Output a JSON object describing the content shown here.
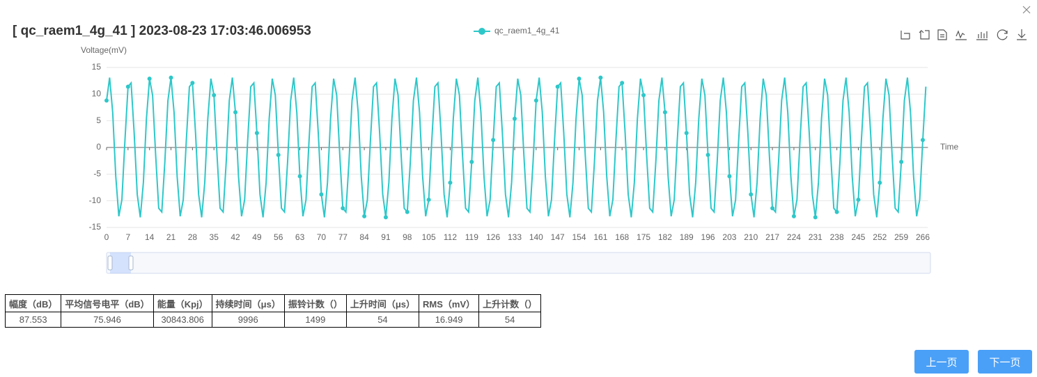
{
  "header": {
    "title": "[ qc_raem1_4g_41 ] 2023-08-23 17:03:46.006953"
  },
  "chart_data": {
    "type": "line",
    "y_label": "Voltage(mV)",
    "x_label": "Time",
    "ylim": [
      -15,
      15
    ],
    "yticks": [
      -15,
      -10,
      -5,
      0,
      5,
      10,
      15
    ],
    "grid": true,
    "categories": [
      0,
      null,
      null,
      null,
      null,
      null,
      null,
      7,
      null,
      null,
      null,
      null,
      null,
      null,
      14,
      null,
      null,
      null,
      null,
      null,
      null,
      21,
      null,
      null,
      null,
      null,
      null,
      null,
      28,
      null,
      null,
      null,
      null,
      null,
      null,
      35,
      null,
      null,
      null,
      null,
      null,
      null,
      42,
      null,
      null,
      null,
      null,
      null,
      null,
      49,
      null,
      null,
      null,
      null,
      null,
      null,
      56,
      null,
      null,
      null,
      null,
      null,
      null,
      63,
      null,
      null,
      null,
      null,
      null,
      null,
      70,
      null,
      null,
      null,
      null,
      null,
      null,
      77,
      null,
      null,
      null,
      null,
      null,
      null,
      84,
      null,
      null,
      null,
      null,
      null,
      null,
      91,
      null,
      null,
      null,
      null,
      null,
      null,
      98,
      null,
      null,
      null,
      null,
      null,
      null,
      105,
      null,
      null,
      null,
      null,
      null,
      null,
      112,
      null,
      null,
      null,
      null,
      null,
      null,
      119,
      null,
      null,
      null,
      null,
      null,
      null,
      126,
      null,
      null,
      null,
      null,
      null,
      null,
      133,
      null,
      null,
      null,
      null,
      null,
      null,
      140,
      null,
      null,
      null,
      null,
      null,
      null,
      147,
      null,
      null,
      null,
      null,
      null,
      null,
      154,
      null,
      null,
      null,
      null,
      null,
      null,
      161,
      null,
      null,
      null,
      null,
      null,
      null,
      168,
      null,
      null,
      null,
      null,
      null,
      null,
      175,
      null,
      null,
      null,
      null,
      null,
      null,
      182,
      null,
      null,
      null,
      null,
      null,
      null,
      189,
      null,
      null,
      null,
      null,
      null,
      null,
      196,
      null,
      null,
      null,
      null,
      null,
      null,
      203,
      null,
      null,
      null,
      null,
      null,
      null,
      210,
      null,
      null,
      null,
      null,
      null,
      null,
      217,
      null,
      null,
      null,
      null,
      null,
      null,
      224,
      null,
      null,
      null,
      null,
      null,
      null,
      231,
      null,
      null,
      null,
      null,
      null,
      null,
      238,
      null,
      null,
      null,
      null,
      null,
      null,
      245,
      null,
      null,
      null,
      null,
      null,
      null,
      252,
      null,
      null,
      null,
      null,
      null,
      null,
      259,
      null,
      null,
      null,
      null,
      null,
      null,
      266,
      null
    ],
    "series": [
      {
        "name": "qc_raem1_4g_41",
        "color": "#2ec7c9",
        "values": [
          8.8,
          13.1,
          6.6,
          -5.4,
          -12.9,
          -9.8,
          1.4,
          11.4,
          12.1,
          2.7,
          -8.8,
          -13.1,
          -6.6,
          5.4,
          12.9,
          9.8,
          -1.4,
          -11.4,
          -12.1,
          -2.7,
          8.8,
          13.1,
          6.6,
          -5.4,
          -12.9,
          -9.8,
          1.4,
          11.4,
          12.1,
          2.7,
          -8.8,
          -13.1,
          -6.6,
          5.4,
          12.9,
          9.8,
          -1.4,
          -11.4,
          -12.1,
          -2.7,
          8.8,
          13.1,
          6.6,
          -5.4,
          -12.9,
          -9.8,
          1.4,
          11.4,
          12.1,
          2.7,
          -8.8,
          -13.1,
          -6.6,
          5.4,
          12.9,
          9.8,
          -1.4,
          -11.4,
          -12.1,
          -2.7,
          8.8,
          13.1,
          6.6,
          -5.4,
          -12.9,
          -9.8,
          1.4,
          11.4,
          12.1,
          2.7,
          -8.8,
          -13.1,
          -6.6,
          5.4,
          12.9,
          9.8,
          -1.4,
          -11.4,
          -12.1,
          -2.7,
          8.8,
          13.1,
          6.6,
          -5.4,
          -12.9,
          -9.8,
          1.4,
          11.4,
          12.1,
          2.7,
          -8.8,
          -13.1,
          -6.6,
          5.4,
          12.9,
          9.8,
          -1.4,
          -11.4,
          -12.1,
          -2.7,
          8.8,
          13.1,
          6.6,
          -5.4,
          -12.9,
          -9.8,
          1.4,
          11.4,
          12.1,
          2.7,
          -8.8,
          -13.1,
          -6.6,
          5.4,
          12.9,
          9.8,
          -1.4,
          -11.4,
          -12.1,
          -2.7,
          8.8,
          13.1,
          6.6,
          -5.4,
          -12.9,
          -9.8,
          1.4,
          11.4,
          12.1,
          2.7,
          -8.8,
          -13.1,
          -6.6,
          5.4,
          12.9,
          9.8,
          -1.4,
          -11.4,
          -12.1,
          -2.7,
          8.8,
          13.1,
          6.6,
          -5.4,
          -12.9,
          -9.8,
          1.4,
          11.4,
          12.1,
          2.7,
          -8.8,
          -13.1,
          -6.6,
          5.4,
          12.9,
          9.8,
          -1.4,
          -11.4,
          -12.1,
          -2.7,
          8.8,
          13.1,
          6.6,
          -5.4,
          -12.9,
          -9.8,
          1.4,
          11.4,
          12.1,
          2.7,
          -8.8,
          -13.1,
          -6.6,
          5.4,
          12.9,
          9.8,
          -1.4,
          -11.4,
          -12.1,
          -2.7,
          8.8,
          13.1,
          6.6,
          -5.4,
          -12.9,
          -9.8,
          1.4,
          11.4,
          12.1,
          2.7,
          -8.8,
          -13.1,
          -6.6,
          5.4,
          12.9,
          9.8,
          -1.4,
          -11.4,
          -12.1,
          -2.7,
          8.8,
          13.1,
          6.6,
          -5.4,
          -12.9,
          -9.8,
          1.4,
          11.4,
          12.1,
          2.7,
          -8.8,
          -13.1,
          -6.6,
          5.4,
          12.9,
          9.8,
          -1.4,
          -11.4,
          -12.1,
          -2.7,
          8.8,
          13.1,
          6.6,
          -5.4,
          -12.9,
          -9.8,
          1.4,
          11.4,
          12.1,
          2.7,
          -8.8,
          -13.1,
          -6.6,
          5.4,
          12.9,
          9.8,
          -1.4,
          -11.4,
          -12.1,
          -2.7,
          8.8,
          13.1,
          6.6,
          -5.4,
          -12.9,
          -9.8,
          1.4,
          11.4,
          12.1,
          2.7,
          -8.8,
          -13.1,
          -6.6,
          5.4,
          12.9,
          9.8,
          -1.4,
          -11.4,
          -12.1,
          -2.7,
          8.8,
          13.1,
          6.6,
          -5.4,
          -12.9,
          -9.8,
          1.4,
          11.4
        ]
      }
    ]
  },
  "table": {
    "columns": [
      "幅度（dB）",
      "平均信号电平（dB）",
      "能量（Kpj）",
      "持续时间（μs）",
      "振铃计数（）",
      "上升时间（μs）",
      "RMS（mV）",
      "上升计数（）"
    ],
    "rows": [
      [
        87.553,
        75.946,
        30843.806,
        9996,
        1499,
        54,
        16.949,
        54
      ]
    ]
  },
  "buttons": [
    "上一页",
    "下一页"
  ]
}
